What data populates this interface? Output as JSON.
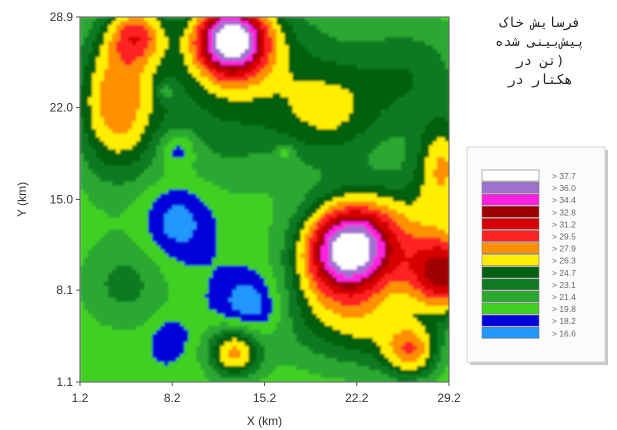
{
  "chart_data": {
    "type": "heatmap",
    "title_lines": [
      "فرسایش خاک",
      "پیش‌بینی شده",
      "(تن در",
      "هکتار در"
    ],
    "xlabel": "X (km)",
    "ylabel": "Y (km)",
    "xlim": [
      1.2,
      29.2
    ],
    "ylim": [
      1.1,
      28.9
    ],
    "x_ticks": [
      "1.2",
      "8.2",
      "15.2",
      "22.2",
      "29.2"
    ],
    "y_ticks": [
      "28.9",
      "22.0",
      "15.0",
      "8.1",
      "1.1"
    ],
    "x_tick_values": [
      1.2,
      8.2,
      15.2,
      22.2,
      29.2
    ],
    "y_tick_values": [
      28.9,
      22.0,
      15.0,
      8.1,
      1.1
    ],
    "legend_position": "right",
    "legend": [
      {
        "label": "> 37.7",
        "color": "#ffffff"
      },
      {
        "label": "> 36.0",
        "color": "#a070d0"
      },
      {
        "label": "> 34.4",
        "color": "#ff20e0"
      },
      {
        "label": "> 32.8",
        "color": "#a00000"
      },
      {
        "label": "> 31.2",
        "color": "#d60000"
      },
      {
        "label": "> 29.5",
        "color": "#ff2020"
      },
      {
        "label": "> 27.9",
        "color": "#ff9000"
      },
      {
        "label": "> 26.3",
        "color": "#ffee00"
      },
      {
        "label": "> 24.7",
        "color": "#006010"
      },
      {
        "label": "> 23.1",
        "color": "#107a20"
      },
      {
        "label": "> 21.4",
        "color": "#2aa830"
      },
      {
        "label": "> 19.8",
        "color": "#40d020"
      },
      {
        "label": "> 18.2",
        "color": "#0000d8"
      },
      {
        "label": "> 16.6",
        "color": "#2098ff"
      }
    ],
    "features": [
      {
        "x": 3.9,
        "y": 22.5,
        "peak": 28.5,
        "spread": 2.3,
        "sy": 4.2
      },
      {
        "x": 5.6,
        "y": 27.6,
        "peak": 27.2,
        "spread": 1.6
      },
      {
        "x": 12.6,
        "y": 27.2,
        "peak": 36.5,
        "spread": 2.0
      },
      {
        "x": 21.6,
        "y": 11.2,
        "peak": 38.5,
        "spread": 2.5
      },
      {
        "x": 28.9,
        "y": 9.3,
        "peak": 33.0,
        "spread": 2.2
      },
      {
        "x": 12.9,
        "y": 3.4,
        "peak": 28.4,
        "spread": 1.5
      },
      {
        "x": 26.4,
        "y": 3.4,
        "peak": 28.0,
        "spread": 1.5
      },
      {
        "x": 28.8,
        "y": 17.5,
        "peak": 27.0,
        "spread": 1.5,
        "sy": 2.6
      },
      {
        "x": 14.2,
        "y": 6.8,
        "peak": 16.0,
        "spread": 1.7
      },
      {
        "x": 8.6,
        "y": 13.4,
        "peak": 16.7,
        "spread": 1.8,
        "sy": 2.1
      },
      {
        "x": 8.6,
        "y": 18.8,
        "peak": 16.4,
        "spread": 1.0
      },
      {
        "x": 7.9,
        "y": 4.4,
        "peak": 18.0,
        "spread": 1.0
      },
      {
        "x": 16.8,
        "y": 18.6,
        "peak": 17.6,
        "spread": 0.5
      },
      {
        "x": 7.7,
        "y": 23.2,
        "peak": 17.4,
        "spread": 0.5
      },
      {
        "x": 11.6,
        "y": 21.5,
        "peak": 23.6,
        "spread": 4.5
      },
      {
        "x": 15.8,
        "y": 26.4,
        "peak": 23.4,
        "spread": 4.0
      },
      {
        "x": 26.2,
        "y": 24.4,
        "peak": 24.3,
        "spread": 3.3
      },
      {
        "x": 25.8,
        "y": 13.4,
        "peak": 24.2,
        "spread": 2.8
      },
      {
        "x": 18.8,
        "y": 6.2,
        "peak": 23.8,
        "spread": 2.8
      },
      {
        "x": 4.6,
        "y": 8.5,
        "peak": 23.6,
        "spread": 2.5
      },
      {
        "x": 20.2,
        "y": 21.4,
        "peak": 25.0,
        "spread": 2.8
      },
      {
        "x": 23.2,
        "y": 5.2,
        "peak": 24.6,
        "spread": 2.4
      }
    ],
    "background_value": 20.0
  }
}
